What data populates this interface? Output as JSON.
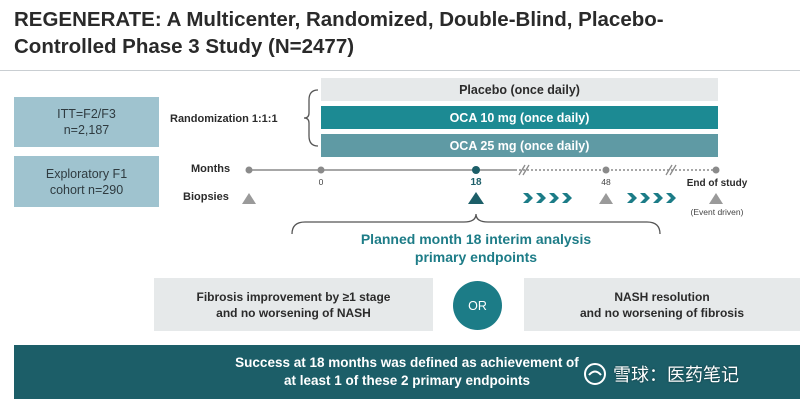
{
  "title": {
    "line1": "REGENERATE: A Multicenter, Randomized, Double-Blind, Placebo-",
    "line2": "Controlled Phase 3 Study (N=2477)"
  },
  "cohorts": [
    {
      "line1": "ITT=F2/F3",
      "line2": "n=2,187"
    },
    {
      "line1": "Exploratory F1",
      "line2": "cohort n=290"
    }
  ],
  "randomization_label": "Randomization 1:1:1",
  "arms": [
    {
      "label": "Placebo (once daily)",
      "color": "#e6e9ea",
      "text_color": "#2b2b2b"
    },
    {
      "label": "OCA 10 mg (once daily)",
      "color": "#1c8a93",
      "text_color": "#ffffff"
    },
    {
      "label": "OCA 25 mg (once daily)",
      "color": "#5f9aa4",
      "text_color": "#ffffff"
    }
  ],
  "timeline": {
    "months_label": "Months",
    "biopsies_label": "Biopsies",
    "ticks": [
      "0",
      "18",
      "48"
    ],
    "end_label": "End of study",
    "end_note": "(Event driven)"
  },
  "planned": {
    "line1": "Planned month 18 interim analysis",
    "line2": "primary endpoints"
  },
  "endpoints": [
    {
      "line1": "Fibrosis improvement by ≥1 stage",
      "line2": "and no worsening of NASH"
    },
    {
      "line1": "NASH resolution",
      "line2": "and no worsening of fibrosis"
    }
  ],
  "or_label": "OR",
  "banner": {
    "line1": "Success at 18 months was defined as achievement of",
    "line2": "at least 1 of these 2 primary endpoints"
  },
  "watermark": "雪球：医药笔记",
  "colors": {
    "teal_dark": "#1c5e68",
    "teal": "#1c8a93",
    "teal_light": "#9fc3cf",
    "gray_box": "#e6e9ea",
    "accent_text": "#1d7c87"
  }
}
